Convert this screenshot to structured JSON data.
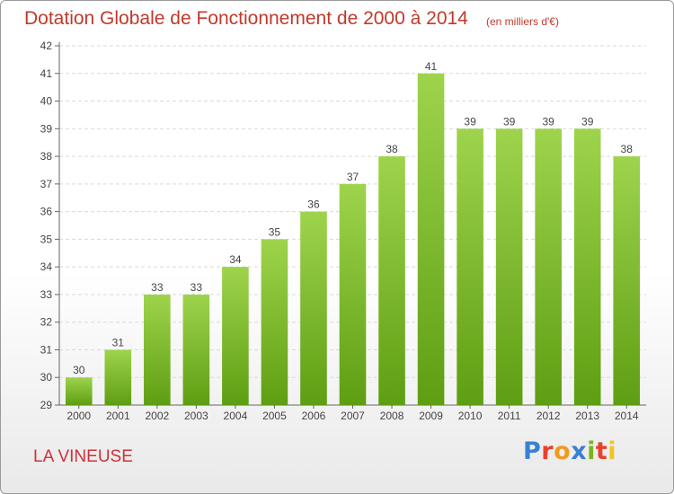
{
  "header": {
    "title": "Dotation Globale de Fonctionnement de 2000 à 2014",
    "subtitle": "(en milliers d'€)"
  },
  "footer": {
    "commune": "LA VINEUSE",
    "logo_text": "Proxiti",
    "logo_colors": [
      "#3a7fd5",
      "#e8402c",
      "#f29a1f",
      "#3a7fd5",
      "#7ab51d",
      "#e8402c",
      "#f2c41f"
    ]
  },
  "colors": {
    "bar_top": "#9ed44c",
    "bar_bottom": "#5e9e12",
    "text_red": "#c0392b",
    "axis": "#666666",
    "grid": "#d9d9d9"
  },
  "chart_data": {
    "type": "bar",
    "categories": [
      "2000",
      "2001",
      "2002",
      "2003",
      "2004",
      "2005",
      "2006",
      "2007",
      "2008",
      "2009",
      "2010",
      "2011",
      "2012",
      "2013",
      "2014"
    ],
    "values": [
      30,
      31,
      33,
      33,
      34,
      35,
      36,
      37,
      38,
      41,
      39,
      39,
      39,
      39,
      38
    ],
    "ylim": [
      29,
      42
    ],
    "yticks": [
      29,
      30,
      31,
      32,
      33,
      34,
      35,
      36,
      37,
      38,
      39,
      40,
      41,
      42
    ],
    "grid": true,
    "data_labels": true
  }
}
